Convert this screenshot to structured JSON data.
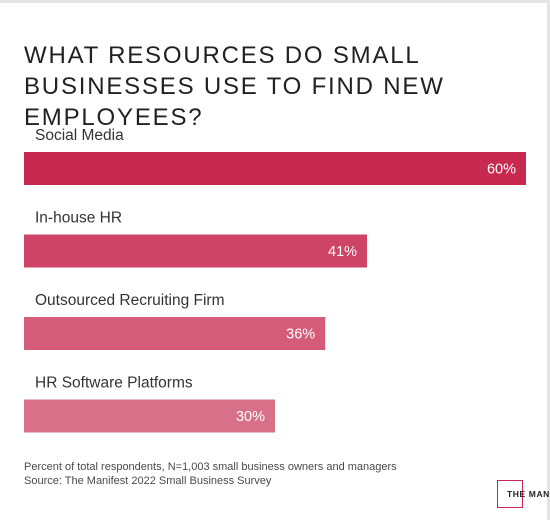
{
  "chart_data": {
    "type": "bar",
    "orientation": "horizontal",
    "title": "What resources do small businesses use to find new employees?",
    "categories": [
      "Social Media",
      "In-house HR",
      "Outsourced Recruiting Firm",
      "HR Software Platforms"
    ],
    "values": [
      60,
      41,
      36,
      30
    ],
    "data_labels": [
      "60%",
      "41%",
      "36%",
      "30%"
    ],
    "unit": "%",
    "xlim": [
      0,
      60
    ],
    "grid": false,
    "legend": "none",
    "colors": [
      "#c7294f",
      "#cd4466",
      "#d45c79",
      "#d9708a"
    ]
  },
  "footnote": {
    "line1": "Percent of total respondents, N=1,003 small business owners and managers",
    "line2": "Source: The Manifest 2022 Small Business Survey"
  },
  "logo": {
    "text": "THE MANIFEST",
    "color": "#c9264f"
  }
}
